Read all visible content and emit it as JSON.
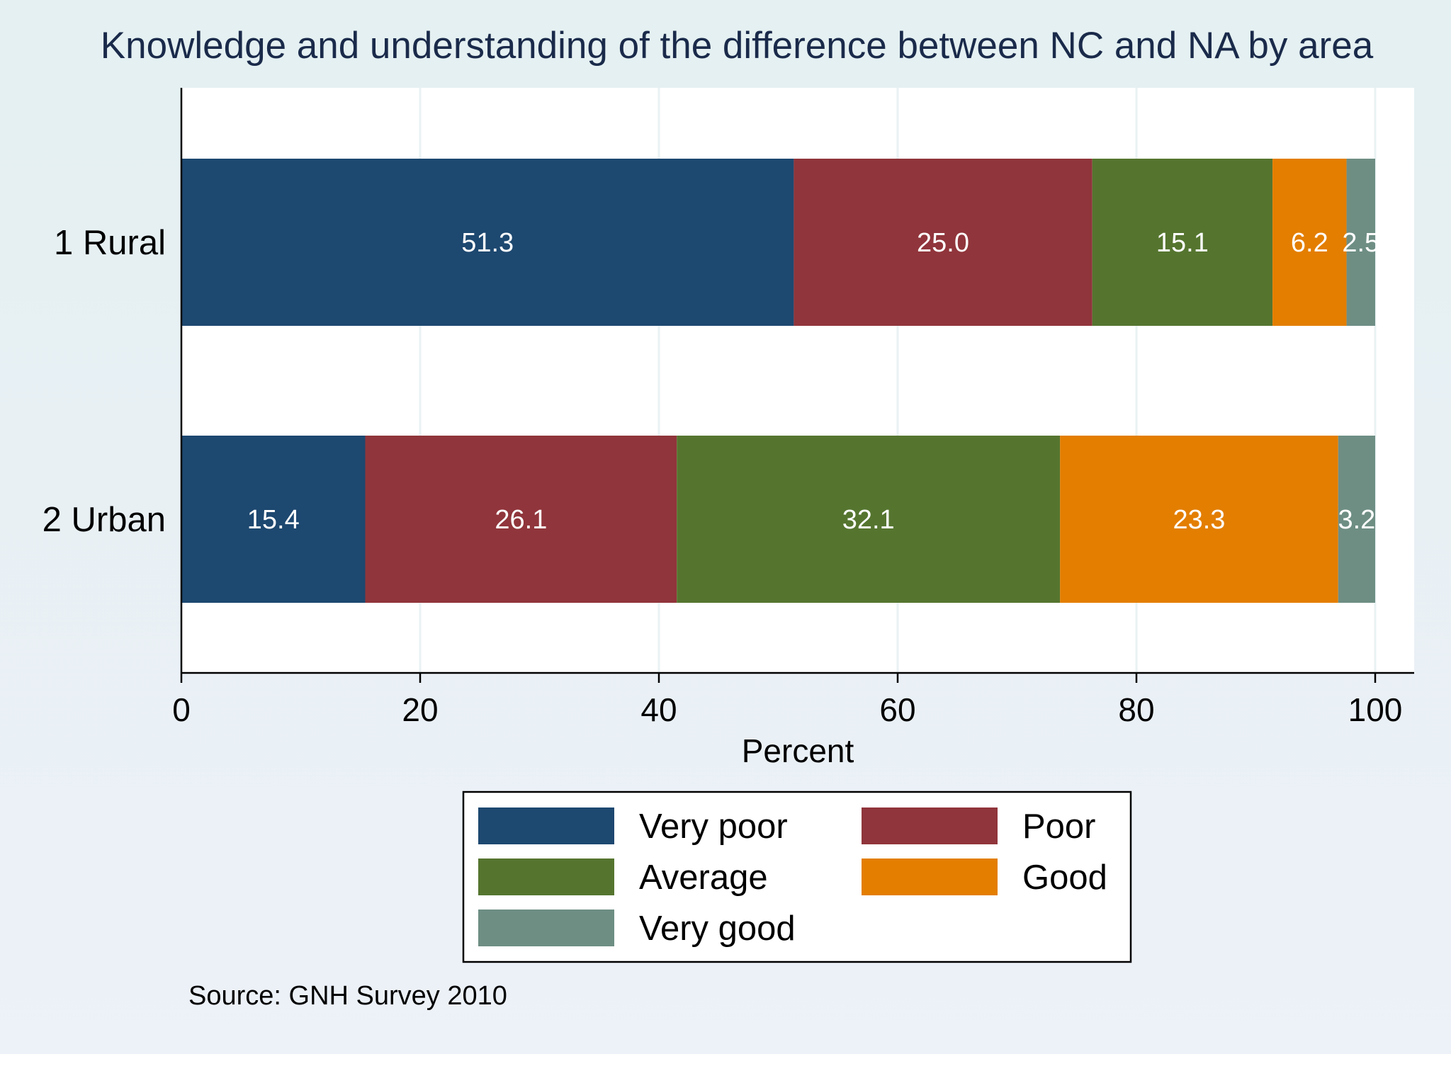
{
  "chart_data": {
    "type": "bar",
    "orientation": "horizontal",
    "stacked": true,
    "title": "Knowledge and understanding of the difference between NC and NA by area",
    "xlabel": "Percent",
    "ylabel": "",
    "xlim": [
      0,
      100
    ],
    "xticks": [
      "0",
      "20",
      "40",
      "60",
      "80",
      "100"
    ],
    "grid": true,
    "categories": [
      "1 Rural",
      "2 Urban"
    ],
    "series": [
      {
        "name": "Very poor",
        "color": "#1d4870",
        "values": [
          51.3,
          15.4
        ],
        "labels": [
          "51.3",
          "15.4"
        ]
      },
      {
        "name": "Poor",
        "color": "#90353b",
        "values": [
          25.0,
          26.1
        ],
        "labels": [
          "25.0",
          "26.1"
        ]
      },
      {
        "name": "Average",
        "color": "#55752f",
        "values": [
          15.1,
          32.1
        ],
        "labels": [
          "15.1",
          "32.1"
        ]
      },
      {
        "name": "Good",
        "color": "#e37e00",
        "values": [
          6.2,
          23.3
        ],
        "labels": [
          "6.2",
          "23.3"
        ]
      },
      {
        "name": "Very good",
        "color": "#6e8e84",
        "values": [
          2.5,
          3.2
        ],
        "labels": [
          "2.5",
          "3.2"
        ]
      }
    ],
    "legend_position": "bottom",
    "note": "Source: GNH Survey 2010"
  },
  "colors": {
    "outer_background": "#eaf2f3",
    "plot_background": "#ffffff",
    "grid": "#eaf2f3",
    "title": "#1a2a4a"
  }
}
